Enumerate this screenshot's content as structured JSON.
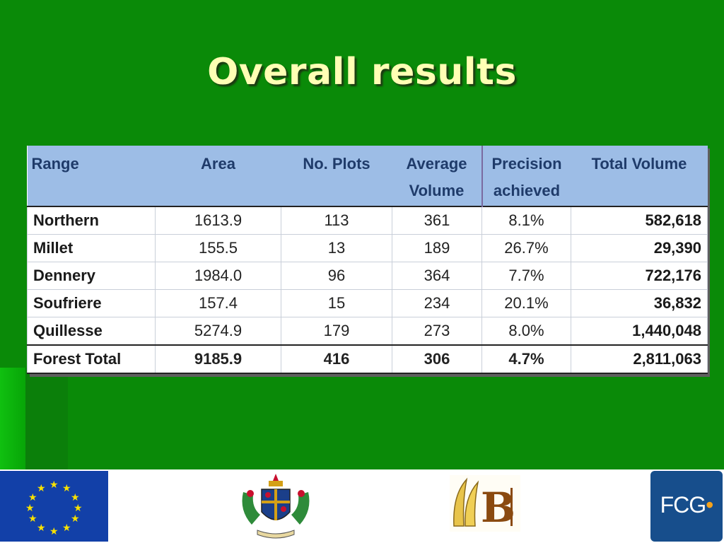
{
  "slide": {
    "title": "Overall results"
  },
  "table": {
    "headers": {
      "range": "Range",
      "area": "Area",
      "plots": "No. Plots",
      "avg_volume_line1": "Average",
      "avg_volume_line2": "Volume",
      "precision_line1": "Precision",
      "precision_line2": "achieved",
      "total_volume": "Total Volume"
    },
    "rows": [
      {
        "range": "Northern",
        "area": "1613.9",
        "plots": "113",
        "avg_volume": "361",
        "precision": "8.1%",
        "total_volume": "582,618"
      },
      {
        "range": "Millet",
        "area": "155.5",
        "plots": "13",
        "avg_volume": "189",
        "precision": "26.7%",
        "total_volume": "29,390"
      },
      {
        "range": "Dennery",
        "area": "1984.0",
        "plots": "96",
        "avg_volume": "364",
        "precision": "7.7%",
        "total_volume": "722,176"
      },
      {
        "range": "Soufriere",
        "area": "157.4",
        "plots": "15",
        "avg_volume": "234",
        "precision": "20.1%",
        "total_volume": "36,832"
      },
      {
        "range": "Quillesse",
        "area": "5274.9",
        "plots": "179",
        "avg_volume": "273",
        "precision": "8.0%",
        "total_volume": "1,440,048"
      }
    ],
    "total": {
      "range": "Forest Total",
      "area": "9185.9",
      "plots": "416",
      "avg_volume": "306",
      "precision": "4.7%",
      "total_volume": "2,811,063"
    }
  },
  "logos": {
    "eu": {
      "icon": "eu-flag-icon",
      "colors": {
        "blue": "#1240a8",
        "star": "#f8e100"
      }
    },
    "saint_lucia": {
      "icon": "coat-of-arms-icon"
    },
    "b_logo": {
      "icon": "b-banana-logo-icon"
    },
    "fcg": {
      "icon": "fcg-logo",
      "text": "FCG",
      "dot": "•",
      "colors": {
        "bg": "#174e8c",
        "dot": "#f5a21b"
      }
    }
  },
  "colors": {
    "background": "#0a8a08",
    "title": "#ffffb4",
    "header_fill": "#9dbde6",
    "header_text": "#1f3b6a"
  }
}
